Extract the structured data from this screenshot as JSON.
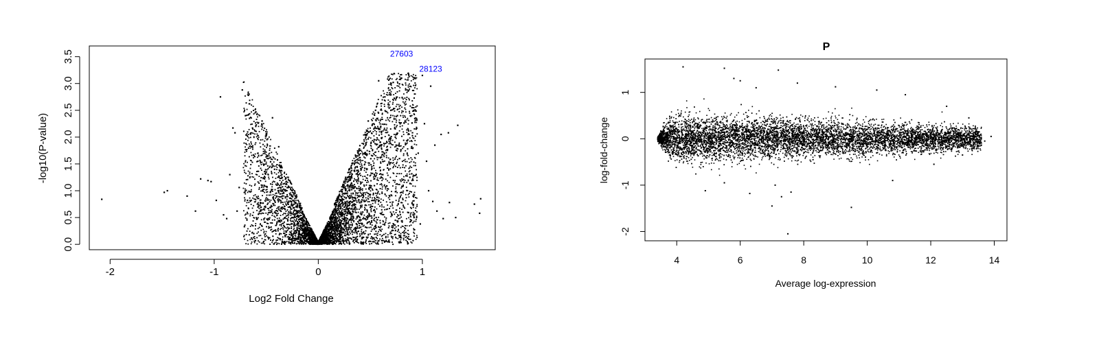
{
  "chart_data": [
    {
      "type": "scatter",
      "title": "",
      "xlabel": "Log2 Fold Change",
      "ylabel": "-log10(P-value)",
      "xlim": [
        -2.2,
        1.7
      ],
      "ylim": [
        -0.1,
        3.7
      ],
      "x_ticks": [
        -2,
        -1,
        0,
        1
      ],
      "x_tick_labels": [
        "-2",
        "-1",
        "0",
        "1"
      ],
      "y_ticks": [
        0.0,
        0.5,
        1.0,
        1.5,
        2.0,
        2.5,
        3.0,
        3.5
      ],
      "y_tick_labels": [
        "0.0",
        "0.5",
        "1.0",
        "1.5",
        "2.0",
        "2.5",
        "3.0",
        "3.5"
      ],
      "grid": false,
      "point_color": "#000000",
      "annotation_color": "#0000ff",
      "annotations": [
        {
          "text": "27603",
          "x": 0.8,
          "y": 3.5
        },
        {
          "text": "28123",
          "x": 1.08,
          "y": 3.22
        }
      ],
      "points": [
        {
          "x": -2.08,
          "y": 0.84
        },
        {
          "x": -1.48,
          "y": 0.97
        },
        {
          "x": -1.45,
          "y": 1.0
        },
        {
          "x": -1.26,
          "y": 0.9
        },
        {
          "x": -1.18,
          "y": 0.62
        },
        {
          "x": -1.13,
          "y": 1.22
        },
        {
          "x": -1.06,
          "y": 1.19
        },
        {
          "x": -1.03,
          "y": 1.17
        },
        {
          "x": -0.98,
          "y": 0.82
        },
        {
          "x": -0.94,
          "y": 2.75
        },
        {
          "x": -0.91,
          "y": 0.55
        },
        {
          "x": -0.88,
          "y": 0.48
        },
        {
          "x": -0.85,
          "y": 1.3
        },
        {
          "x": -0.82,
          "y": 2.17
        },
        {
          "x": -0.8,
          "y": 2.08
        },
        {
          "x": -0.78,
          "y": 0.62
        },
        {
          "x": -0.76,
          "y": 1.06
        },
        {
          "x": -0.73,
          "y": 2.88
        },
        {
          "x": -0.71,
          "y": 0.33
        },
        {
          "x": -0.7,
          "y": 2.4
        },
        {
          "x": -0.68,
          "y": 0.82
        },
        {
          "x": -0.66,
          "y": 2.62
        },
        {
          "x": -0.64,
          "y": 1.82
        },
        {
          "x": -0.62,
          "y": 0.2
        },
        {
          "x": -0.6,
          "y": 2.47
        },
        {
          "x": -0.58,
          "y": 1.55
        },
        {
          "x": -0.56,
          "y": 0.72
        },
        {
          "x": -0.54,
          "y": 2.3
        },
        {
          "x": -0.52,
          "y": 1.1
        },
        {
          "x": -0.5,
          "y": 2.05
        },
        {
          "x": -0.48,
          "y": 0.48
        },
        {
          "x": -0.46,
          "y": 1.62
        },
        {
          "x": -0.44,
          "y": 2.36
        },
        {
          "x": -0.42,
          "y": 1.4
        },
        {
          "x": -0.4,
          "y": 0.9
        },
        {
          "x": -0.38,
          "y": 1.82
        },
        {
          "x": -0.35,
          "y": 1.3
        },
        {
          "x": 0.45,
          "y": 2.05
        },
        {
          "x": 0.48,
          "y": 2.3
        },
        {
          "x": 0.52,
          "y": 1.65
        },
        {
          "x": 0.55,
          "y": 2.5
        },
        {
          "x": 0.58,
          "y": 3.05
        },
        {
          "x": 0.6,
          "y": 2.2
        },
        {
          "x": 0.62,
          "y": 1.3
        },
        {
          "x": 0.64,
          "y": 2.75
        },
        {
          "x": 0.66,
          "y": 1.9
        },
        {
          "x": 0.68,
          "y": 2.6
        },
        {
          "x": 0.7,
          "y": 0.92
        },
        {
          "x": 0.72,
          "y": 3.02
        },
        {
          "x": 0.74,
          "y": 2.0
        },
        {
          "x": 0.76,
          "y": 2.4
        },
        {
          "x": 0.78,
          "y": 1.6
        },
        {
          "x": 0.8,
          "y": 3.1
        },
        {
          "x": 0.82,
          "y": 0.7
        },
        {
          "x": 0.84,
          "y": 2.88
        },
        {
          "x": 0.86,
          "y": 1.95
        },
        {
          "x": 0.88,
          "y": 1.25
        },
        {
          "x": 0.9,
          "y": 2.55
        },
        {
          "x": 0.92,
          "y": 0.5
        },
        {
          "x": 0.94,
          "y": 2.15
        },
        {
          "x": 0.96,
          "y": 1.7
        },
        {
          "x": 0.98,
          "y": 0.38
        },
        {
          "x": 1.0,
          "y": 3.15
        },
        {
          "x": 1.02,
          "y": 2.25
        },
        {
          "x": 1.04,
          "y": 1.55
        },
        {
          "x": 1.06,
          "y": 1.0
        },
        {
          "x": 1.08,
          "y": 2.95
        },
        {
          "x": 1.1,
          "y": 0.8
        },
        {
          "x": 1.12,
          "y": 1.85
        },
        {
          "x": 1.14,
          "y": 0.62
        },
        {
          "x": 1.18,
          "y": 2.05
        },
        {
          "x": 1.2,
          "y": 0.48
        },
        {
          "x": 1.25,
          "y": 2.08
        },
        {
          "x": 1.26,
          "y": 0.78
        },
        {
          "x": 1.32,
          "y": 0.5
        },
        {
          "x": 1.34,
          "y": 2.22
        },
        {
          "x": 1.5,
          "y": 0.75
        },
        {
          "x": 1.55,
          "y": 0.58
        },
        {
          "x": 1.56,
          "y": 0.85
        }
      ]
    },
    {
      "type": "scatter",
      "title": "P",
      "xlabel": "Average log-expression",
      "ylabel": "log-fold-change",
      "xlim": [
        3.0,
        14.4
      ],
      "ylim": [
        -2.2,
        1.72
      ],
      "x_ticks": [
        4,
        6,
        8,
        10,
        12,
        14
      ],
      "x_tick_labels": [
        "4",
        "6",
        "8",
        "10",
        "12",
        "14"
      ],
      "y_ticks": [
        -2,
        -1,
        0,
        1
      ],
      "y_tick_labels": [
        "-2",
        "-1",
        "0",
        "1"
      ],
      "grid": false,
      "point_color": "#000000",
      "points": [
        {
          "x": 4.2,
          "y": 1.55
        },
        {
          "x": 5.5,
          "y": 1.52
        },
        {
          "x": 7.2,
          "y": 1.48
        },
        {
          "x": 5.8,
          "y": 1.3
        },
        {
          "x": 6.0,
          "y": 1.25
        },
        {
          "x": 6.5,
          "y": 1.1
        },
        {
          "x": 7.8,
          "y": 1.2
        },
        {
          "x": 9.0,
          "y": 1.12
        },
        {
          "x": 10.3,
          "y": 1.05
        },
        {
          "x": 11.2,
          "y": 0.95
        },
        {
          "x": 12.5,
          "y": 0.7
        },
        {
          "x": 13.2,
          "y": 0.45
        },
        {
          "x": 4.9,
          "y": -1.12
        },
        {
          "x": 5.5,
          "y": -0.95
        },
        {
          "x": 6.3,
          "y": -1.18
        },
        {
          "x": 7.1,
          "y": -1.0
        },
        {
          "x": 7.3,
          "y": -1.25
        },
        {
          "x": 7.6,
          "y": -1.15
        },
        {
          "x": 7.0,
          "y": -1.45
        },
        {
          "x": 9.5,
          "y": -1.48
        },
        {
          "x": 7.5,
          "y": -2.05
        },
        {
          "x": 10.8,
          "y": -0.9
        },
        {
          "x": 12.1,
          "y": -0.55
        },
        {
          "x": 13.0,
          "y": -0.35
        },
        {
          "x": 13.9,
          "y": 0.05
        },
        {
          "x": 13.7,
          "y": -0.05
        }
      ]
    }
  ]
}
